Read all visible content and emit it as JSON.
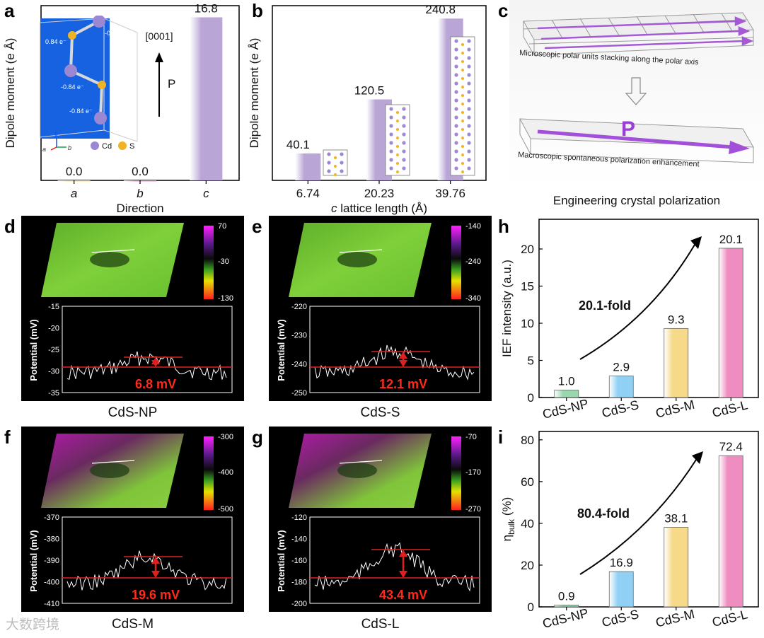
{
  "colors": {
    "purple_bar": "#b9a6d6",
    "green_bar": "#9ad7ae",
    "blue_bar": "#8fd0f4",
    "yellow_bar": "#f7d98a",
    "pink_bar": "#ef8cc0",
    "red_line": "#e02020",
    "arrow_black": "#000000",
    "highlight_red": "#ff2a1a"
  },
  "panels": {
    "a": "a",
    "b": "b",
    "c": "c",
    "d": "d",
    "e": "e",
    "f": "f",
    "g": "g",
    "h": "h",
    "i": "i"
  },
  "panel_a": {
    "direction_label": "[0001]",
    "p_label": "P",
    "inset_charges": [
      "0.84 e⁻",
      "-0.84 e⁻",
      "0.84 e⁻",
      "-0.84 e⁻",
      "-0.84 e⁻"
    ],
    "axis_labels": [
      "c",
      "a",
      "b"
    ],
    "legend": [
      "Cd",
      "S"
    ]
  },
  "panel_b": {
    "structures": [
      "small",
      "medium",
      "large"
    ]
  },
  "panel_c": {
    "top_caption": "Microscopic polar units stacking along the polar axis",
    "p_label": "P",
    "bottom_caption": "Macroscopic spontaneous polarization enhancement",
    "title": "Engineering crystal polarization"
  },
  "kpfm": [
    {
      "id": "d",
      "caption": "CdS-NP",
      "delta": "6.8 mV",
      "scale": [
        "70",
        "-30",
        "-130"
      ],
      "ylabel": "Potential (mV)",
      "yticks": [
        "-15",
        "-20",
        "-25",
        "-30",
        "-35"
      ],
      "color_map": "green"
    },
    {
      "id": "e",
      "caption": "CdS-S",
      "delta": "12.1 mV",
      "scale": [
        "-140",
        "-240",
        "-340"
      ],
      "ylabel": "Potential (mV)",
      "yticks": [
        "-220",
        "-230",
        "-240",
        "-250"
      ],
      "color_map": "green"
    },
    {
      "id": "f",
      "caption": "CdS-M",
      "delta": "19.6 mV",
      "scale": [
        "-300",
        "-400",
        "-500"
      ],
      "ylabel": "Potential (mV)",
      "yticks": [
        "-370",
        "-380",
        "-390",
        "-400",
        "-410"
      ],
      "color_map": "magenta"
    },
    {
      "id": "g",
      "caption": "CdS-L",
      "delta": "43.4 mV",
      "scale": [
        "-70",
        "-170",
        "-270"
      ],
      "ylabel": "Potential (mV)",
      "yticks": [
        "-120",
        "-140",
        "-160",
        "-180",
        "-200"
      ],
      "color_map": "magenta"
    }
  ],
  "watermark": "大数跨境",
  "chart_data": [
    {
      "id": "a",
      "type": "bar",
      "xlabel": "Direction",
      "ylabel": "Dipole moment (e Å)",
      "categories": [
        "a",
        "b",
        "c"
      ],
      "values": [
        0.0,
        0.0,
        16.8
      ],
      "value_labels": [
        "0.0",
        "0.0",
        "16.8"
      ],
      "ylim": [
        0,
        18
      ]
    },
    {
      "id": "b",
      "type": "bar",
      "xlabel": "c lattice length (Å)",
      "ylabel": "Dipole moment (e Å)",
      "categories": [
        "6.74",
        "20.23",
        "39.76"
      ],
      "values": [
        40.1,
        120.5,
        240.8
      ],
      "value_labels": [
        "40.1",
        "120.5",
        "240.8"
      ],
      "ylim": [
        0,
        260
      ]
    },
    {
      "id": "h",
      "type": "bar",
      "xlabel": "",
      "ylabel": "IEF intensity (a.u.)",
      "categories": [
        "CdS-NP",
        "CdS-S",
        "CdS-M",
        "CdS-L"
      ],
      "values": [
        1.0,
        2.9,
        9.3,
        20.1
      ],
      "value_labels": [
        "1.0",
        "2.9",
        "9.3",
        "20.1"
      ],
      "yticks": [
        0,
        5,
        10,
        15,
        20
      ],
      "ylim": [
        0,
        24
      ],
      "annotation": "20.1-fold"
    },
    {
      "id": "i",
      "type": "bar",
      "xlabel": "",
      "ylabel": "η",
      "ylabel_sub": "bulk",
      "ylabel_unit": " (%)",
      "categories": [
        "CdS-NP",
        "CdS-S",
        "CdS-M",
        "CdS-L"
      ],
      "values": [
        0.9,
        16.9,
        38.1,
        72.4
      ],
      "value_labels": [
        "0.9",
        "16.9",
        "38.1",
        "72.4"
      ],
      "yticks": [
        0,
        20,
        40,
        60,
        80
      ],
      "ylim": [
        0,
        84
      ],
      "annotation": "80.4-fold"
    }
  ]
}
